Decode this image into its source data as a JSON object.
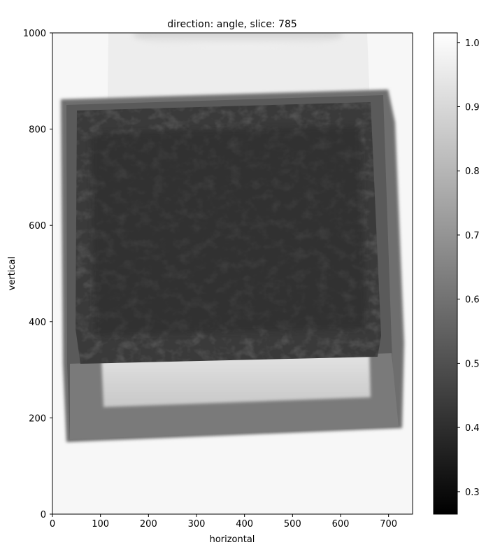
{
  "chart_data": {
    "type": "heatmap",
    "title": "direction: angle, slice: 785",
    "xlabel": "horizontal",
    "ylabel": "vertical",
    "xlim": [
      0,
      750
    ],
    "ylim": [
      0,
      1000
    ],
    "x_ticks": [
      0,
      100,
      200,
      300,
      400,
      500,
      600,
      700
    ],
    "y_ticks": [
      0,
      200,
      400,
      600,
      800,
      1000
    ],
    "colorbar": {
      "colormap": "gray",
      "range": [
        0.265,
        1.015
      ],
      "ticks": [
        "0.3",
        "0.4",
        "0.5",
        "0.6",
        "0.7",
        "0.8",
        "0.9",
        "1.0"
      ],
      "tick_values": [
        0.3,
        0.4,
        0.5,
        0.6,
        0.7,
        0.8,
        0.9,
        1.0
      ]
    },
    "grid": false,
    "image_regions": [
      {
        "name": "background",
        "value": 0.97
      },
      {
        "name": "container-frame",
        "value": 0.47
      },
      {
        "name": "dense-content-block",
        "value": 0.31
      },
      {
        "name": "bright-band",
        "value": 0.86
      },
      {
        "name": "lower-tray",
        "value": 0.52
      }
    ],
    "colors": {
      "axis": "#000000",
      "background": "#ffffff"
    }
  }
}
